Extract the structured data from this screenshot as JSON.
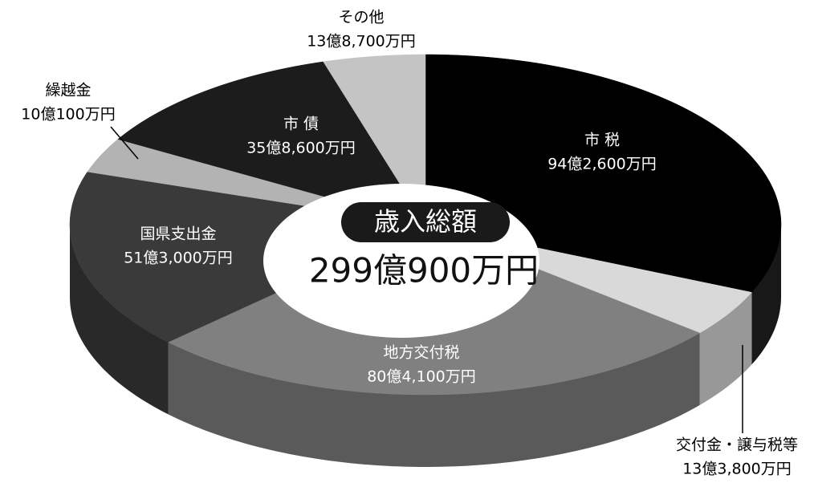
{
  "chart_data": {
    "type": "pie",
    "categories": [
      "市 税",
      "交付金・譲与税等",
      "地方交付税",
      "国県支出金",
      "繰越金",
      "市 債",
      "その他"
    ],
    "values": [
      942600,
      133800,
      804100,
      513000,
      100100,
      358600,
      138700
    ],
    "value_labels": [
      "94億2,600万円",
      "13億3,800万円",
      "80億4,100万円",
      "51億3,000万円",
      "10億100万円",
      "35億8,600万円",
      "13億8,700万円"
    ],
    "colors": [
      "#000000",
      "#d9d9d9",
      "#808080",
      "#3a3a3a",
      "#b3b3b3",
      "#1c1c1c",
      "#c4c4c4"
    ],
    "center_title": "歳入総額",
    "total": 2990900,
    "total_label": "299億900万円"
  }
}
